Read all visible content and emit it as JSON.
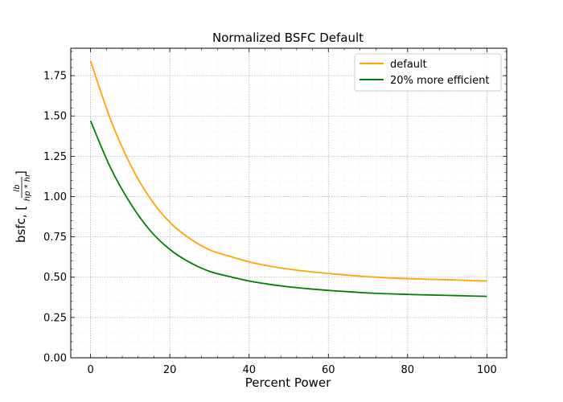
{
  "chart_data": {
    "type": "line",
    "title": "Normalized BSFC Default",
    "xlabel": "Percent Power",
    "ylabel": {
      "prefix": "bsfc, [",
      "numerator": "lb",
      "denominator": "hp * hr",
      "suffix": "]"
    },
    "xlim": [
      -5,
      105
    ],
    "ylim": [
      0,
      1.92
    ],
    "xticks": [
      0,
      20,
      40,
      60,
      80,
      100
    ],
    "yticks": [
      0.0,
      0.25,
      0.5,
      0.75,
      1.0,
      1.25,
      1.5,
      1.75
    ],
    "ytick_labels": [
      "0.00",
      "0.25",
      "0.50",
      "0.75",
      "1.00",
      "1.25",
      "1.50",
      "1.75"
    ],
    "xtick_labels": [
      "0",
      "20",
      "40",
      "60",
      "80",
      "100"
    ],
    "grid": true,
    "minor_grid": true,
    "legend_position": "top-right",
    "x": [
      0,
      5,
      10,
      15,
      20,
      25,
      30,
      35,
      40,
      45,
      50,
      55,
      60,
      65,
      70,
      75,
      80,
      85,
      90,
      95,
      100
    ],
    "series": [
      {
        "name": "default",
        "color": "#ffa500",
        "values": [
          1.84,
          1.48,
          1.2,
          0.99,
          0.84,
          0.74,
          0.67,
          0.63,
          0.595,
          0.57,
          0.55,
          0.535,
          0.523,
          0.512,
          0.503,
          0.496,
          0.491,
          0.487,
          0.484,
          0.48,
          0.476
        ]
      },
      {
        "name": "20% more efficient",
        "color": "#008000",
        "values": [
          1.47,
          1.18,
          0.96,
          0.79,
          0.672,
          0.592,
          0.536,
          0.504,
          0.476,
          0.456,
          0.44,
          0.428,
          0.418,
          0.41,
          0.402,
          0.397,
          0.393,
          0.39,
          0.387,
          0.384,
          0.381
        ]
      }
    ]
  }
}
